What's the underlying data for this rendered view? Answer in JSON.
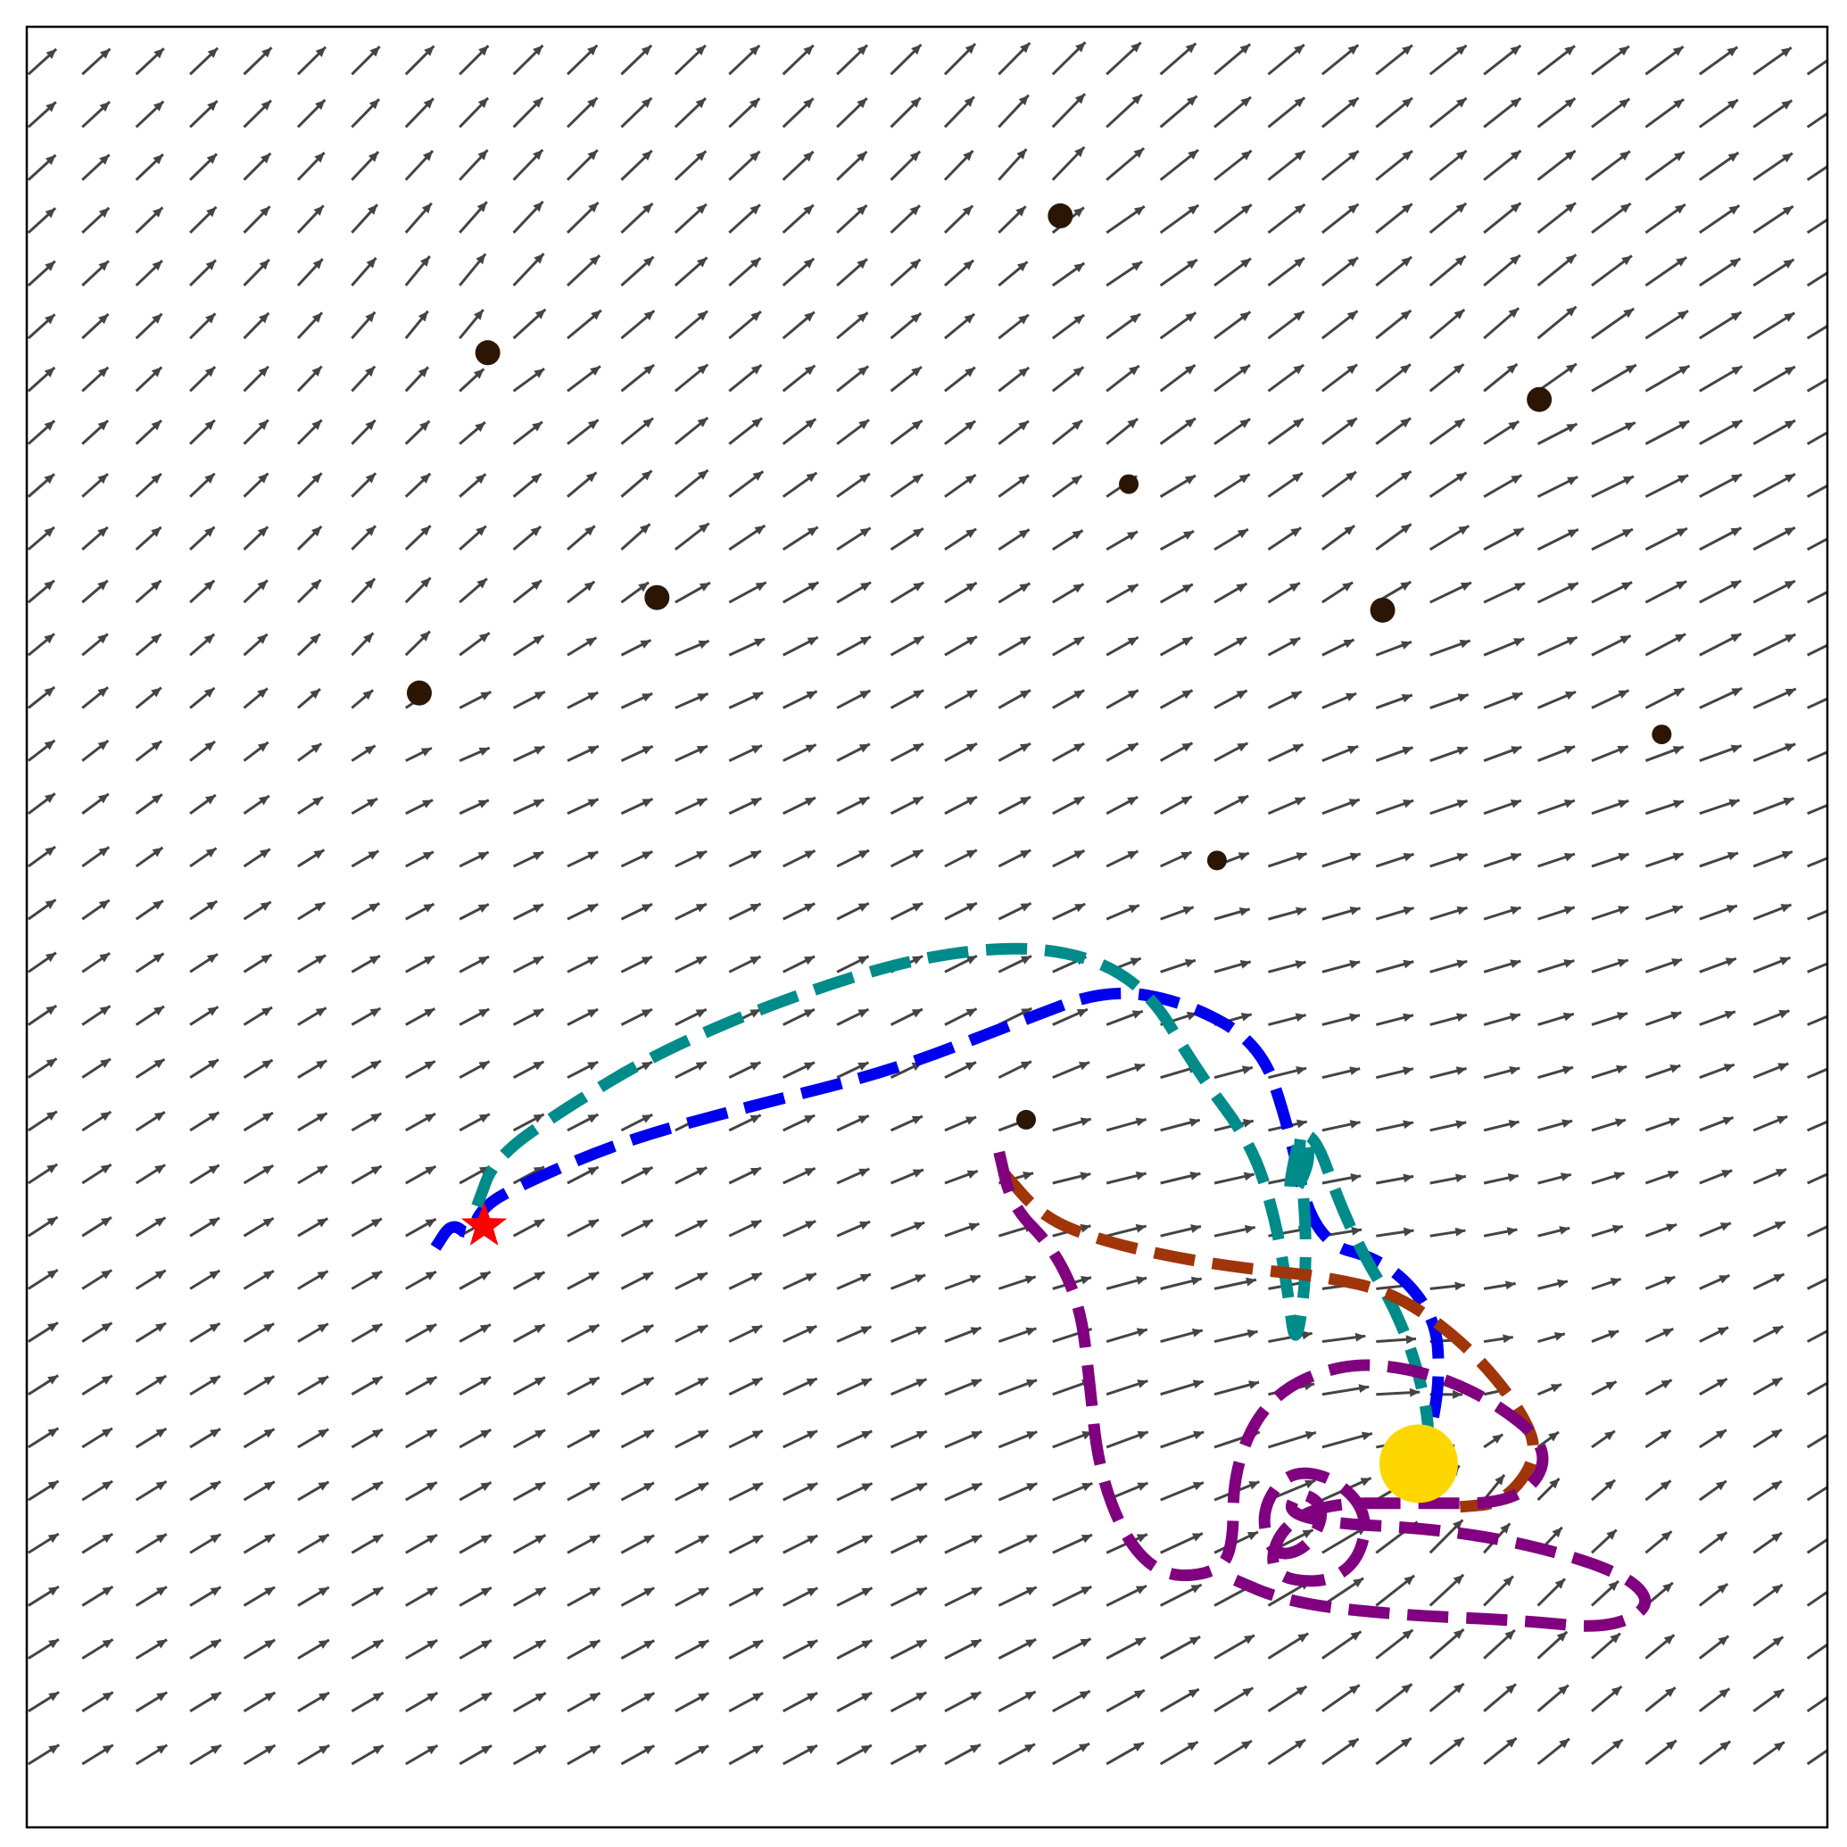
{
  "chart_data": {
    "type": "quiver",
    "title": "",
    "xlabel": "",
    "ylabel": "",
    "xlim": [
      0,
      1
    ],
    "ylim": [
      0,
      1
    ],
    "grid": false,
    "ticks": false,
    "background_field": {
      "grid_cols": 34,
      "grid_rows": 34,
      "color": "#444444",
      "base_direction_deg": 34,
      "base_magnitude": 0.022
    },
    "obstacles": [
      {
        "x": 0.256,
        "y": 0.819,
        "size": "large"
      },
      {
        "x": 0.574,
        "y": 0.895,
        "size": "large"
      },
      {
        "x": 0.84,
        "y": 0.793,
        "size": "large"
      },
      {
        "x": 0.35,
        "y": 0.683,
        "size": "large"
      },
      {
        "x": 0.753,
        "y": 0.676,
        "size": "large"
      },
      {
        "x": 0.218,
        "y": 0.63,
        "size": "large"
      },
      {
        "x": 0.612,
        "y": 0.746,
        "size": "small"
      },
      {
        "x": 0.908,
        "y": 0.607,
        "size": "small"
      },
      {
        "x": 0.661,
        "y": 0.537,
        "size": "small"
      },
      {
        "x": 0.555,
        "y": 0.393,
        "size": "small"
      }
    ],
    "start": {
      "x": 0.254,
      "y": 0.334,
      "marker": "star",
      "color": "#ff0000"
    },
    "goal": {
      "x": 0.773,
      "y": 0.202,
      "marker": "circle",
      "color": "#ffd700"
    },
    "series": [
      {
        "color": "#0000ee",
        "points": [
          [
            0.227,
            0.322
          ],
          [
            0.236,
            0.336
          ],
          [
            0.246,
            0.328
          ],
          [
            0.252,
            0.343
          ],
          [
            0.268,
            0.354
          ],
          [
            0.33,
            0.381
          ],
          [
            0.4,
            0.4
          ],
          [
            0.48,
            0.42
          ],
          [
            0.55,
            0.447
          ],
          [
            0.6,
            0.466
          ],
          [
            0.645,
            0.458
          ],
          [
            0.685,
            0.435
          ],
          [
            0.7,
            0.392
          ],
          [
            0.715,
            0.325
          ],
          [
            0.755,
            0.315
          ],
          [
            0.782,
            0.285
          ],
          [
            0.785,
            0.25
          ],
          [
            0.779,
            0.215
          ]
        ]
      },
      {
        "color": "#008b8b",
        "points": [
          [
            0.25,
            0.345
          ],
          [
            0.26,
            0.372
          ],
          [
            0.3,
            0.4
          ],
          [
            0.35,
            0.43
          ],
          [
            0.42,
            0.46
          ],
          [
            0.5,
            0.485
          ],
          [
            0.57,
            0.49
          ],
          [
            0.62,
            0.47
          ],
          [
            0.65,
            0.42
          ],
          [
            0.68,
            0.38
          ],
          [
            0.693,
            0.34
          ],
          [
            0.7,
            0.3
          ],
          [
            0.705,
            0.262
          ],
          [
            0.712,
            0.32
          ],
          [
            0.705,
            0.392
          ],
          [
            0.715,
            0.372
          ],
          [
            0.698,
            0.342
          ],
          [
            0.71,
            0.4
          ],
          [
            0.735,
            0.33
          ],
          [
            0.765,
            0.28
          ],
          [
            0.78,
            0.225
          ],
          [
            0.776,
            0.195
          ]
        ]
      },
      {
        "color": "#a0350a",
        "points": [
          [
            0.542,
            0.364
          ],
          [
            0.565,
            0.338
          ],
          [
            0.6,
            0.325
          ],
          [
            0.64,
            0.316
          ],
          [
            0.68,
            0.31
          ],
          [
            0.72,
            0.306
          ],
          [
            0.76,
            0.297
          ],
          [
            0.8,
            0.268
          ],
          [
            0.83,
            0.232
          ],
          [
            0.84,
            0.206
          ],
          [
            0.82,
            0.18
          ],
          [
            0.796,
            0.178
          ]
        ]
      },
      {
        "color": "#800080",
        "points": [
          [
            0.54,
            0.375
          ],
          [
            0.547,
            0.345
          ],
          [
            0.57,
            0.322
          ],
          [
            0.585,
            0.29
          ],
          [
            0.59,
            0.25
          ],
          [
            0.595,
            0.2
          ],
          [
            0.61,
            0.16
          ],
          [
            0.63,
            0.14
          ],
          [
            0.655,
            0.14
          ],
          [
            0.67,
            0.15
          ],
          [
            0.67,
            0.2
          ],
          [
            0.69,
            0.24
          ],
          [
            0.73,
            0.258
          ],
          [
            0.77,
            0.255
          ],
          [
            0.81,
            0.24
          ],
          [
            0.848,
            0.21
          ],
          [
            0.83,
            0.18
          ],
          [
            0.77,
            0.18
          ],
          [
            0.72,
            0.18
          ],
          [
            0.695,
            0.165
          ],
          [
            0.69,
            0.14
          ],
          [
            0.72,
            0.135
          ],
          [
            0.74,
            0.148
          ],
          [
            0.745,
            0.175
          ],
          [
            0.725,
            0.195
          ],
          [
            0.7,
            0.198
          ],
          [
            0.685,
            0.175
          ],
          [
            0.692,
            0.15
          ],
          [
            0.712,
            0.155
          ],
          [
            0.722,
            0.178
          ],
          [
            0.705,
            0.188
          ],
          [
            0.7,
            0.17
          ],
          [
            0.8,
            0.165
          ],
          [
            0.88,
            0.145
          ],
          [
            0.905,
            0.125
          ],
          [
            0.88,
            0.11
          ],
          [
            0.83,
            0.115
          ],
          [
            0.76,
            0.118
          ],
          [
            0.7,
            0.125
          ],
          [
            0.665,
            0.14
          ]
        ]
      }
    ]
  }
}
